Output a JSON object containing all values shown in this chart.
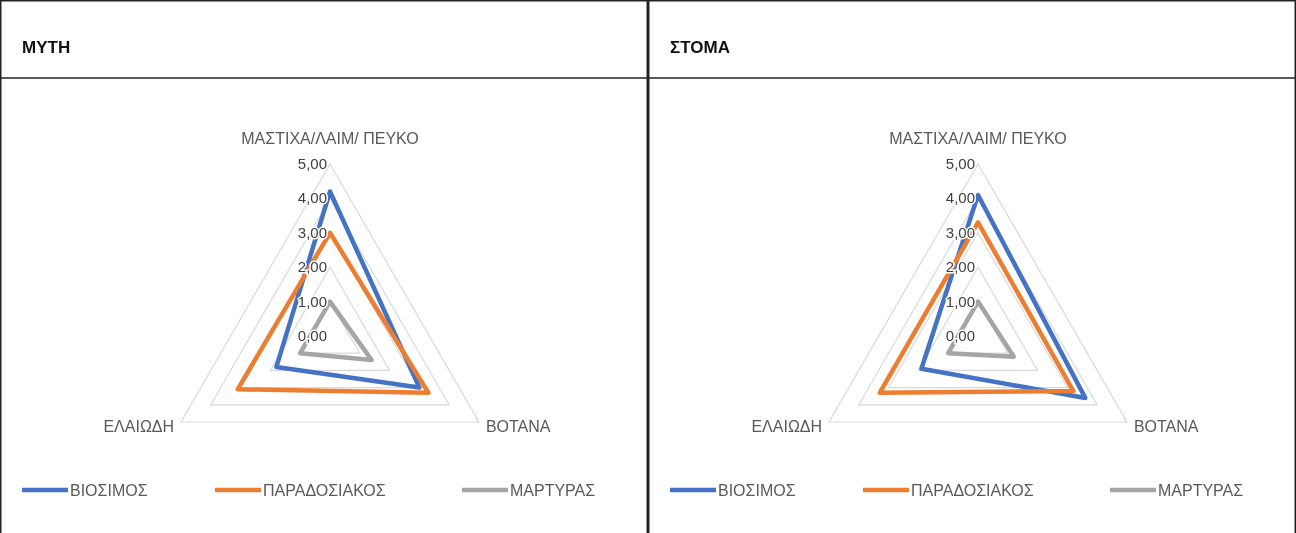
{
  "chart_data": [
    {
      "type": "radar",
      "title": "ΜΥΤΗ",
      "categories": [
        "ΜΑΣΤΙΧΑ/ΛΑΙΜ/ ΠΕΥΚΟ",
        "ΒΟΤΑΝΑ",
        "ΕΛΑΙΩΔΗ"
      ],
      "ylim": [
        0,
        5
      ],
      "yticks": [
        {
          "value": 0,
          "label": "0,00"
        },
        {
          "value": 1,
          "label": "1,00"
        },
        {
          "value": 2,
          "label": "2,00"
        },
        {
          "value": 3,
          "label": "3,00"
        },
        {
          "value": 4,
          "label": "4,00"
        },
        {
          "value": 5,
          "label": "5,00"
        }
      ],
      "grid": true,
      "legend": "bottom",
      "series": [
        {
          "name": "ΒΙΟΣΙΜΟΣ",
          "color": "#4472c4",
          "values": [
            4.2,
            3.0,
            1.8
          ]
        },
        {
          "name": "ΠΑΡΑΔΟΣΙΑΚΟΣ",
          "color": "#ed7d31",
          "values": [
            3.0,
            3.3,
            3.1
          ]
        },
        {
          "name": "ΜΑΡΤΥΡΑΣ",
          "color": "#a5a5a5",
          "values": [
            1.0,
            1.4,
            1.0
          ]
        }
      ]
    },
    {
      "type": "radar",
      "title": "ΣΤΟΜΑ",
      "categories": [
        "ΜΑΣΤΙΧΑ/ΛΑΙΜ/ ΠΕΥΚΟ",
        "ΒΟΤΑΝΑ",
        "ΕΛΑΙΩΔΗ"
      ],
      "ylim": [
        0,
        5
      ],
      "yticks": [
        {
          "value": 0,
          "label": "0,00"
        },
        {
          "value": 1,
          "label": "1,00"
        },
        {
          "value": 2,
          "label": "2,00"
        },
        {
          "value": 3,
          "label": "3,00"
        },
        {
          "value": 4,
          "label": "4,00"
        },
        {
          "value": 5,
          "label": "5,00"
        }
      ],
      "grid": true,
      "legend": "bottom",
      "series": [
        {
          "name": "ΒΙΟΣΙΜΟΣ",
          "color": "#4472c4",
          "values": [
            4.1,
            3.6,
            1.9
          ]
        },
        {
          "name": "ΠΑΡΑΔΟΣΙΑΚΟΣ",
          "color": "#ed7d31",
          "values": [
            3.3,
            3.2,
            3.3
          ]
        },
        {
          "name": "ΜΑΡΤΥΡΑΣ",
          "color": "#a5a5a5",
          "values": [
            1.0,
            1.2,
            1.0
          ]
        }
      ]
    }
  ]
}
